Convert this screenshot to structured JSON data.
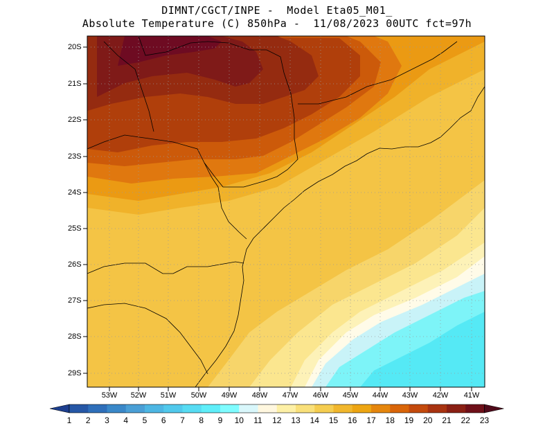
{
  "title": {
    "line1": "DIMNT/CGCT/INPE -  Model Eta05_M01_",
    "line2": "Absolute Temperature (C) 850hPa -  11/08/2023 00UTC fct=97h"
  },
  "map": {
    "lat_labels": [
      "20S",
      "21S",
      "22S",
      "23S",
      "24S",
      "25S",
      "26S",
      "27S",
      "28S",
      "29S"
    ],
    "lon_labels": [
      "53W",
      "52W",
      "51W",
      "50W",
      "49W",
      "48W",
      "47W",
      "46W",
      "45W",
      "44W",
      "43W",
      "42W",
      "41W"
    ],
    "gridlines": "dotted"
  },
  "colorbar": {
    "labels": [
      "1",
      "2",
      "3",
      "4",
      "5",
      "6",
      "7",
      "8",
      "9",
      "10",
      "11",
      "12",
      "13",
      "14",
      "15",
      "16",
      "17",
      "18",
      "19",
      "20",
      "21",
      "22",
      "23"
    ],
    "colors": [
      "#1d3f8f",
      "#2657a6",
      "#2f6fba",
      "#3a88c9",
      "#4a9fd6",
      "#4db6e3",
      "#51c9ec",
      "#57dcf3",
      "#5feef9",
      "#7ffcff",
      "#d9f7fb",
      "#fff7df",
      "#fdf0a6",
      "#f9e07a",
      "#f5cd50",
      "#f1b72d",
      "#eda512",
      "#e5860d",
      "#d96509",
      "#c44a0c",
      "#a83310",
      "#8a1f13",
      "#6e0f18",
      "#4f0a1a"
    ]
  },
  "field_colors": {
    "t23": "#6e0b22",
    "t22": "#7f1a18",
    "t21": "#952b10",
    "t20": "#b03f0b",
    "t19": "#cc5a0a",
    "t18": "#e0780f",
    "t17": "#eb9a13",
    "t16": "#f0b22a",
    "t15": "#f4c445",
    "t14": "#f7d56a",
    "t13": "#fbe68f",
    "t12": "#fdf2b8",
    "t11": "#fffbe8",
    "t10": "#c9f3f8",
    "t9": "#7df4f8",
    "t8": "#55e9f5",
    "t7": "#46d8ee"
  }
}
